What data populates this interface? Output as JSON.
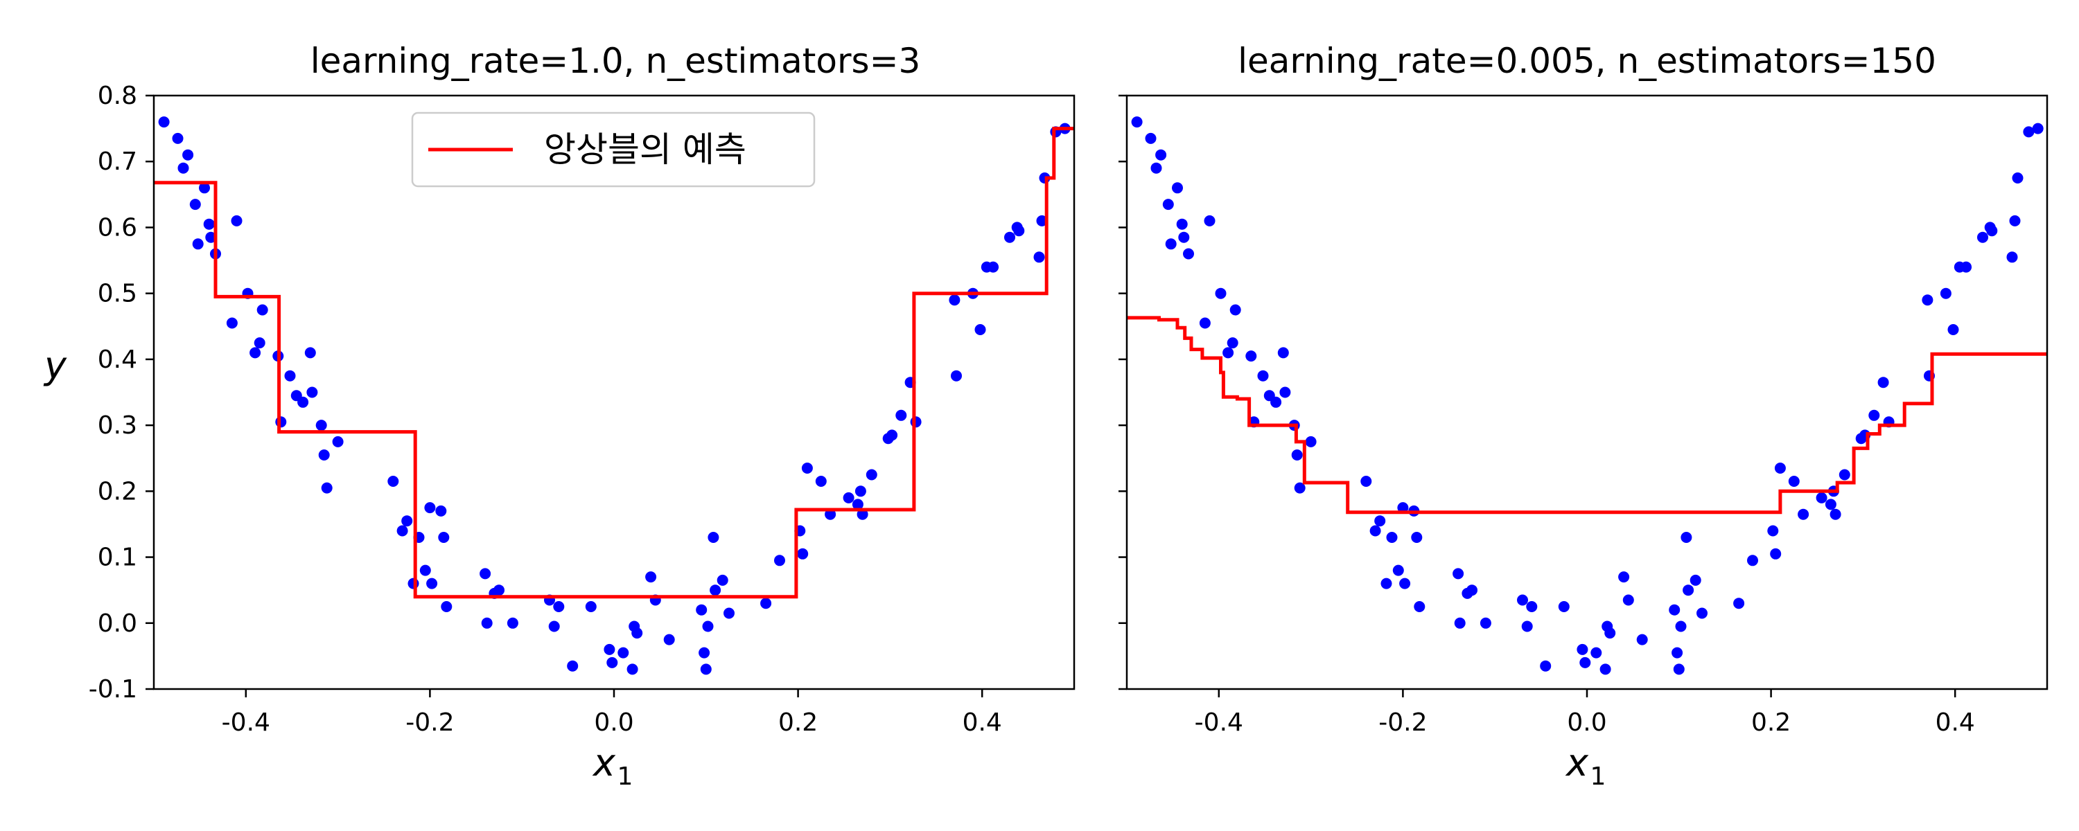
{
  "chart_data": [
    {
      "type": "line",
      "title": "learning_rate=1.0, n_estimators=3",
      "xlabel": "x",
      "xlabel_sub": "1",
      "ylabel": "y",
      "xlim": [
        -0.5,
        0.5
      ],
      "ylim": [
        -0.1,
        0.8
      ],
      "xticks": [
        -0.4,
        -0.2,
        0.0,
        0.2,
        0.4
      ],
      "xtick_labels": [
        "-0.4",
        "-0.2",
        "0.0",
        "0.2",
        "0.4"
      ],
      "yticks": [
        -0.1,
        0.0,
        0.1,
        0.2,
        0.3,
        0.4,
        0.5,
        0.6,
        0.7,
        0.8
      ],
      "ytick_labels": [
        "-0.1",
        "0.0",
        "0.1",
        "0.2",
        "0.3",
        "0.4",
        "0.5",
        "0.6",
        "0.7",
        "0.8"
      ],
      "show_yticklabels": true,
      "grid": false,
      "legend": {
        "show": true,
        "placement": "top-center",
        "label": "앙상블의 예측",
        "color": "#ff0000"
      },
      "scatter_color": "#0000ff",
      "line_color": "#ff0000",
      "line_name": "앙상블의 예측",
      "points": [
        [
          -0.489,
          0.76
        ],
        [
          -0.474,
          0.735
        ],
        [
          -0.468,
          0.69
        ],
        [
          -0.463,
          0.71
        ],
        [
          -0.455,
          0.635
        ],
        [
          -0.452,
          0.575
        ],
        [
          -0.445,
          0.66
        ],
        [
          -0.44,
          0.605
        ],
        [
          -0.438,
          0.585
        ],
        [
          -0.433,
          0.56
        ],
        [
          -0.415,
          0.455
        ],
        [
          -0.41,
          0.61
        ],
        [
          -0.398,
          0.5
        ],
        [
          -0.39,
          0.41
        ],
        [
          -0.385,
          0.425
        ],
        [
          -0.382,
          0.475
        ],
        [
          -0.365,
          0.405
        ],
        [
          -0.362,
          0.305
        ],
        [
          -0.352,
          0.375
        ],
        [
          -0.345,
          0.345
        ],
        [
          -0.338,
          0.335
        ],
        [
          -0.33,
          0.41
        ],
        [
          -0.328,
          0.35
        ],
        [
          -0.318,
          0.3
        ],
        [
          -0.315,
          0.255
        ],
        [
          -0.312,
          0.205
        ],
        [
          -0.3,
          0.275
        ],
        [
          -0.24,
          0.215
        ],
        [
          -0.23,
          0.14
        ],
        [
          -0.225,
          0.155
        ],
        [
          -0.218,
          0.06
        ],
        [
          -0.212,
          0.13
        ],
        [
          -0.205,
          0.08
        ],
        [
          -0.198,
          0.06
        ],
        [
          -0.2,
          0.175
        ],
        [
          -0.188,
          0.17
        ],
        [
          -0.185,
          0.13
        ],
        [
          -0.182,
          0.025
        ],
        [
          -0.14,
          0.075
        ],
        [
          -0.138,
          0.0
        ],
        [
          -0.13,
          0.045
        ],
        [
          -0.125,
          0.05
        ],
        [
          -0.11,
          0.0
        ],
        [
          -0.07,
          0.035
        ],
        [
          -0.065,
          -0.005
        ],
        [
          -0.06,
          0.025
        ],
        [
          -0.045,
          -0.065
        ],
        [
          -0.025,
          0.025
        ],
        [
          -0.005,
          -0.04
        ],
        [
          -0.002,
          -0.06
        ],
        [
          0.01,
          -0.045
        ],
        [
          0.02,
          -0.07
        ],
        [
          0.022,
          -0.005
        ],
        [
          0.025,
          -0.015
        ],
        [
          0.04,
          0.07
        ],
        [
          0.045,
          0.035
        ],
        [
          0.06,
          -0.025
        ],
        [
          0.095,
          0.02
        ],
        [
          0.098,
          -0.045
        ],
        [
          0.1,
          -0.07
        ],
        [
          0.102,
          -0.005
        ],
        [
          0.108,
          0.13
        ],
        [
          0.11,
          0.05
        ],
        [
          0.118,
          0.065
        ],
        [
          0.125,
          0.015
        ],
        [
          0.165,
          0.03
        ],
        [
          0.18,
          0.095
        ],
        [
          0.202,
          0.14
        ],
        [
          0.205,
          0.105
        ],
        [
          0.21,
          0.235
        ],
        [
          0.225,
          0.215
        ],
        [
          0.235,
          0.165
        ],
        [
          0.255,
          0.19
        ],
        [
          0.265,
          0.18
        ],
        [
          0.268,
          0.2
        ],
        [
          0.27,
          0.165
        ],
        [
          0.28,
          0.225
        ],
        [
          0.298,
          0.28
        ],
        [
          0.302,
          0.285
        ],
        [
          0.312,
          0.315
        ],
        [
          0.322,
          0.365
        ],
        [
          0.328,
          0.305
        ],
        [
          0.37,
          0.49
        ],
        [
          0.372,
          0.375
        ],
        [
          0.39,
          0.5
        ],
        [
          0.398,
          0.445
        ],
        [
          0.405,
          0.54
        ],
        [
          0.412,
          0.54
        ],
        [
          0.43,
          0.585
        ],
        [
          0.438,
          0.6
        ],
        [
          0.44,
          0.595
        ],
        [
          0.462,
          0.555
        ],
        [
          0.465,
          0.61
        ],
        [
          0.468,
          0.675
        ],
        [
          0.48,
          0.745
        ],
        [
          0.49,
          0.75
        ]
      ],
      "step_line": [
        [
          -0.5,
          0.668
        ],
        [
          -0.433,
          0.668
        ],
        [
          -0.433,
          0.495
        ],
        [
          -0.364,
          0.495
        ],
        [
          -0.364,
          0.29
        ],
        [
          -0.216,
          0.29
        ],
        [
          -0.216,
          0.04
        ],
        [
          0.198,
          0.04
        ],
        [
          0.198,
          0.172
        ],
        [
          0.326,
          0.172
        ],
        [
          0.326,
          0.5
        ],
        [
          0.47,
          0.5
        ],
        [
          0.47,
          0.675
        ],
        [
          0.478,
          0.675
        ],
        [
          0.478,
          0.75
        ],
        [
          0.5,
          0.75
        ]
      ]
    },
    {
      "type": "line",
      "title": "learning_rate=0.005, n_estimators=150",
      "xlabel": "x",
      "xlabel_sub": "1",
      "ylabel": "",
      "xlim": [
        -0.5,
        0.5
      ],
      "ylim": [
        -0.1,
        0.8
      ],
      "xticks": [
        -0.4,
        -0.2,
        0.0,
        0.2,
        0.4
      ],
      "xtick_labels": [
        "-0.4",
        "-0.2",
        "0.0",
        "0.2",
        "0.4"
      ],
      "yticks": [
        -0.1,
        0.0,
        0.1,
        0.2,
        0.3,
        0.4,
        0.5,
        0.6,
        0.7,
        0.8
      ],
      "ytick_labels": [],
      "show_yticklabels": false,
      "grid": false,
      "legend": {
        "show": false
      },
      "scatter_color": "#0000ff",
      "line_color": "#ff0000",
      "points": [
        [
          -0.489,
          0.76
        ],
        [
          -0.474,
          0.735
        ],
        [
          -0.468,
          0.69
        ],
        [
          -0.463,
          0.71
        ],
        [
          -0.455,
          0.635
        ],
        [
          -0.452,
          0.575
        ],
        [
          -0.445,
          0.66
        ],
        [
          -0.44,
          0.605
        ],
        [
          -0.438,
          0.585
        ],
        [
          -0.433,
          0.56
        ],
        [
          -0.415,
          0.455
        ],
        [
          -0.41,
          0.61
        ],
        [
          -0.398,
          0.5
        ],
        [
          -0.39,
          0.41
        ],
        [
          -0.385,
          0.425
        ],
        [
          -0.382,
          0.475
        ],
        [
          -0.365,
          0.405
        ],
        [
          -0.362,
          0.305
        ],
        [
          -0.352,
          0.375
        ],
        [
          -0.345,
          0.345
        ],
        [
          -0.338,
          0.335
        ],
        [
          -0.33,
          0.41
        ],
        [
          -0.328,
          0.35
        ],
        [
          -0.318,
          0.3
        ],
        [
          -0.315,
          0.255
        ],
        [
          -0.312,
          0.205
        ],
        [
          -0.3,
          0.275
        ],
        [
          -0.24,
          0.215
        ],
        [
          -0.23,
          0.14
        ],
        [
          -0.225,
          0.155
        ],
        [
          -0.218,
          0.06
        ],
        [
          -0.212,
          0.13
        ],
        [
          -0.205,
          0.08
        ],
        [
          -0.198,
          0.06
        ],
        [
          -0.2,
          0.175
        ],
        [
          -0.188,
          0.17
        ],
        [
          -0.185,
          0.13
        ],
        [
          -0.182,
          0.025
        ],
        [
          -0.14,
          0.075
        ],
        [
          -0.138,
          0.0
        ],
        [
          -0.13,
          0.045
        ],
        [
          -0.125,
          0.05
        ],
        [
          -0.11,
          0.0
        ],
        [
          -0.07,
          0.035
        ],
        [
          -0.065,
          -0.005
        ],
        [
          -0.06,
          0.025
        ],
        [
          -0.045,
          -0.065
        ],
        [
          -0.025,
          0.025
        ],
        [
          -0.005,
          -0.04
        ],
        [
          -0.002,
          -0.06
        ],
        [
          0.01,
          -0.045
        ],
        [
          0.02,
          -0.07
        ],
        [
          0.022,
          -0.005
        ],
        [
          0.025,
          -0.015
        ],
        [
          0.04,
          0.07
        ],
        [
          0.045,
          0.035
        ],
        [
          0.06,
          -0.025
        ],
        [
          0.095,
          0.02
        ],
        [
          0.098,
          -0.045
        ],
        [
          0.1,
          -0.07
        ],
        [
          0.102,
          -0.005
        ],
        [
          0.108,
          0.13
        ],
        [
          0.11,
          0.05
        ],
        [
          0.118,
          0.065
        ],
        [
          0.125,
          0.015
        ],
        [
          0.165,
          0.03
        ],
        [
          0.18,
          0.095
        ],
        [
          0.202,
          0.14
        ],
        [
          0.205,
          0.105
        ],
        [
          0.21,
          0.235
        ],
        [
          0.225,
          0.215
        ],
        [
          0.235,
          0.165
        ],
        [
          0.255,
          0.19
        ],
        [
          0.265,
          0.18
        ],
        [
          0.268,
          0.2
        ],
        [
          0.27,
          0.165
        ],
        [
          0.28,
          0.225
        ],
        [
          0.298,
          0.28
        ],
        [
          0.302,
          0.285
        ],
        [
          0.312,
          0.315
        ],
        [
          0.322,
          0.365
        ],
        [
          0.328,
          0.305
        ],
        [
          0.37,
          0.49
        ],
        [
          0.372,
          0.375
        ],
        [
          0.39,
          0.5
        ],
        [
          0.398,
          0.445
        ],
        [
          0.405,
          0.54
        ],
        [
          0.412,
          0.54
        ],
        [
          0.43,
          0.585
        ],
        [
          0.438,
          0.6
        ],
        [
          0.44,
          0.595
        ],
        [
          0.462,
          0.555
        ],
        [
          0.465,
          0.61
        ],
        [
          0.468,
          0.675
        ],
        [
          0.48,
          0.745
        ],
        [
          0.49,
          0.75
        ]
      ],
      "step_line": [
        [
          -0.5,
          0.463
        ],
        [
          -0.465,
          0.463
        ],
        [
          -0.465,
          0.46
        ],
        [
          -0.445,
          0.46
        ],
        [
          -0.445,
          0.448
        ],
        [
          -0.437,
          0.448
        ],
        [
          -0.437,
          0.432
        ],
        [
          -0.43,
          0.432
        ],
        [
          -0.43,
          0.415
        ],
        [
          -0.418,
          0.415
        ],
        [
          -0.418,
          0.402
        ],
        [
          -0.398,
          0.402
        ],
        [
          -0.398,
          0.38
        ],
        [
          -0.395,
          0.38
        ],
        [
          -0.395,
          0.343
        ],
        [
          -0.38,
          0.343
        ],
        [
          -0.38,
          0.34
        ],
        [
          -0.367,
          0.34
        ],
        [
          -0.367,
          0.3
        ],
        [
          -0.316,
          0.3
        ],
        [
          -0.316,
          0.275
        ],
        [
          -0.307,
          0.275
        ],
        [
          -0.307,
          0.213
        ],
        [
          -0.26,
          0.213
        ],
        [
          -0.26,
          0.168
        ],
        [
          0.21,
          0.168
        ],
        [
          0.21,
          0.2
        ],
        [
          0.272,
          0.2
        ],
        [
          0.272,
          0.213
        ],
        [
          0.29,
          0.213
        ],
        [
          0.29,
          0.265
        ],
        [
          0.305,
          0.265
        ],
        [
          0.305,
          0.287
        ],
        [
          0.318,
          0.287
        ],
        [
          0.318,
          0.3
        ],
        [
          0.345,
          0.3
        ],
        [
          0.345,
          0.333
        ],
        [
          0.375,
          0.333
        ],
        [
          0.375,
          0.408
        ],
        [
          0.5,
          0.408
        ]
      ]
    }
  ]
}
